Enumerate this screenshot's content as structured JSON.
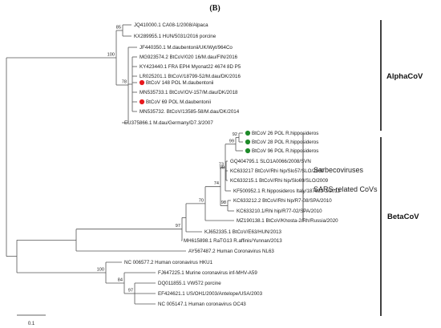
{
  "panel_label": "(B)",
  "clades": {
    "alpha": "AlphaCoV",
    "beta": "BetaCoV"
  },
  "annotations": {
    "sarbeco": "Sarbecoviruses",
    "sars_related": "SARS-related CoVs"
  },
  "scale_bar_label": "0.1",
  "colors": {
    "red_marker": "#e8191e",
    "green_marker": "#1f8b2a",
    "line": "#555555"
  },
  "taxa": [
    {
      "label": "JQ410000.1 CA08-1/2008/Alpaca",
      "marker": null
    },
    {
      "label": "KX289955.1 HUN/5031/2016 porcine",
      "marker": null
    },
    {
      "label": "JF440350.1 M.daubentonii/UK/Wyt/964Co",
      "marker": null
    },
    {
      "label": "MG923574.2 BtCoV/020 16/M.dau/FIN/2016",
      "marker": null
    },
    {
      "label": "KY423440.1 FRA EPI4 Myonat22 4674 8D P5",
      "marker": null
    },
    {
      "label": "LR025201.1 BtCoV/18799-52/M.dau/DK/2016",
      "marker": null
    },
    {
      "label": "BtCoV 148 POL M.daubentonii",
      "marker": "red"
    },
    {
      "label": "MN535733.1 BtCoV/OV-157/M.dau/DK/2018",
      "marker": null
    },
    {
      "label": "BtCoV 69 POL M.daubentonii",
      "marker": "red"
    },
    {
      "label": "MN535732. BtCoV/13585-58/M.dau/DK/2014",
      "marker": null
    },
    {
      "label": "EU375866.1 M.dau/Germany/D7.3/2007",
      "marker": null
    },
    {
      "label": "BtCoV 26 POL R.hipposideros",
      "marker": "green"
    },
    {
      "label": "BtCoV 28 POL R.hipposideros",
      "marker": "green"
    },
    {
      "label": "BtCoV 96 POL R.hipposideros",
      "marker": "green"
    },
    {
      "label": "GQ404795.1 SLO1A0066/2008/SVN",
      "marker": null
    },
    {
      "label": "KC633217 BtCoV/Rhi hip/Slo57/SLO/2009",
      "marker": null
    },
    {
      "label": "KC633215.1 BtCoV/Rhi hip/Slo69/SLO/2009",
      "marker": null
    },
    {
      "label": "KF500952.1 R.hipposideros Italy/187632-2/2012",
      "marker": null
    },
    {
      "label": "KC633212.2 BtCoV/Rhi hip/R7-08/SPA/2010",
      "marker": null
    },
    {
      "label": "KC633210.1/Rhi hip/R77-02/SPA/2010",
      "marker": null
    },
    {
      "label": "MZ190138.1 BtCoV/Khosta-2/Rh/Russia/2020",
      "marker": null
    },
    {
      "label": "KJ652335.1 BtCoV/E63/HUN/2013",
      "marker": null
    },
    {
      "label": "MH615898.1 RaTG13 R.affinis/Yunnan/2013",
      "marker": null
    },
    {
      "label": "AY567487.2 Human Coronavirus NL63",
      "marker": null
    },
    {
      "label": "NC 006577.2 Human coronavirus HKU1",
      "marker": null
    },
    {
      "label": "FJ647225.1 Murine coronavirus inf-MHV-A59",
      "marker": null
    },
    {
      "label": "DQ011855.1 VW572 porcine",
      "marker": null
    },
    {
      "label": "EF424621.1 US/OH1/2003/Antelope/USA/2003",
      "marker": null
    },
    {
      "label": "NC 005147.1 Human coronavirus OC43",
      "marker": null
    }
  ],
  "bootstrap": [
    "85",
    "78",
    "100",
    "92",
    "99",
    "96",
    "73",
    "98",
    "74",
    "98",
    "70",
    "96",
    "97",
    "100",
    "84",
    "97"
  ]
}
